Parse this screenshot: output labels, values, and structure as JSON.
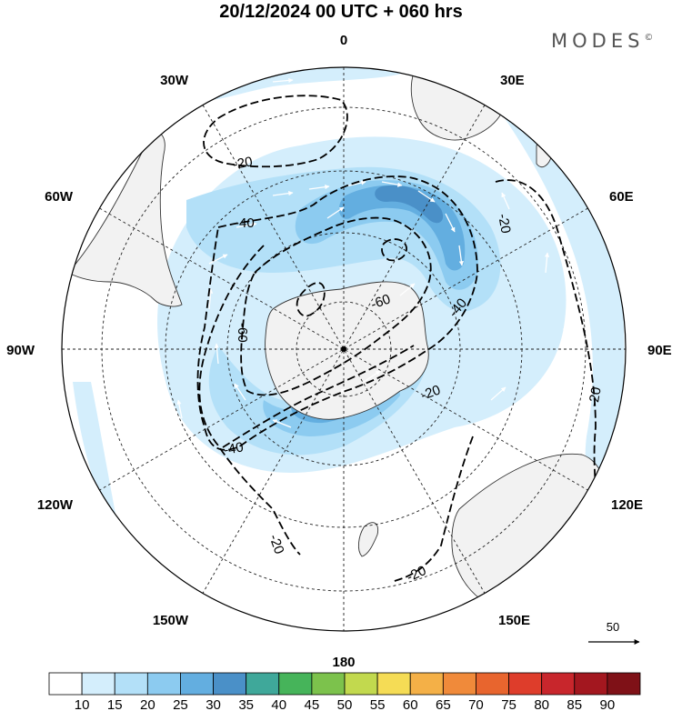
{
  "title": "20/12/2024  00 UTC  + 060 hrs",
  "brand": "MODES",
  "brand_mark": "©",
  "longitude_labels": {
    "lon_0": "0",
    "lon_30e": "30E",
    "lon_60e": "60E",
    "lon_90e": "90E",
    "lon_120e": "120E",
    "lon_150e": "150E",
    "lon_180": "180",
    "lon_150w": "150W",
    "lon_120w": "120W",
    "lon_90w": "90W",
    "lon_60w": "60W",
    "lon_30w": "30W"
  },
  "contour_labels": [
    "-20",
    "-40",
    "-60",
    "-60",
    "-40",
    "-20",
    "-40",
    "-20",
    "-20",
    "-20",
    "-20"
  ],
  "reference_vector": {
    "label": "50",
    "units_shown": ""
  },
  "colorbar": {
    "levels": [
      "10",
      "15",
      "20",
      "25",
      "30",
      "35",
      "40",
      "45",
      "50",
      "55",
      "60",
      "65",
      "70",
      "75",
      "80",
      "85",
      "90"
    ],
    "colors": [
      "#ffffff",
      "#d4eefc",
      "#b3e0f8",
      "#8ccbf0",
      "#63aee0",
      "#4a90c8",
      "#3fa89a",
      "#46b45a",
      "#7cc24c",
      "#c2d94e",
      "#f5dc55",
      "#f4b047",
      "#f08a3a",
      "#e8652e",
      "#de3d2b",
      "#c8262c",
      "#a3171f",
      "#7f1117"
    ]
  }
}
